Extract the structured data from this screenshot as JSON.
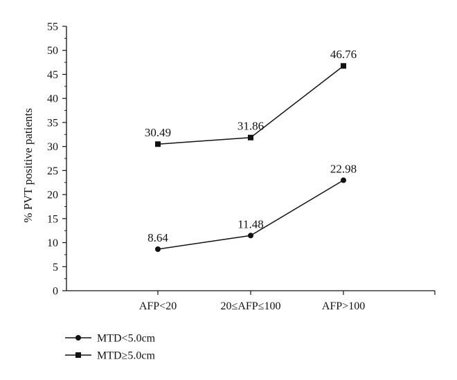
{
  "chart_data": {
    "type": "line",
    "categories": [
      "AFP<20",
      "20≤AFP≤100",
      "AFP>100"
    ],
    "series": [
      {
        "name": "MTD<5.0cm",
        "marker": "circle",
        "values": [
          8.64,
          11.48,
          22.98
        ],
        "labels": [
          "8.64",
          "11.48",
          "22.98"
        ]
      },
      {
        "name": "MTD≥5.0cm",
        "marker": "square",
        "values": [
          30.49,
          31.86,
          46.76
        ],
        "labels": [
          "30.49",
          "31.86",
          "46.76"
        ]
      }
    ],
    "ylabel": "% PVT positive patients",
    "ylim": [
      0,
      55
    ],
    "yticks": [
      "0",
      "5",
      "10",
      "15",
      "20",
      "25",
      "30",
      "35",
      "40",
      "45",
      "50",
      "55"
    ],
    "grid": false,
    "legend": "bottom-left",
    "color": "#111111"
  }
}
